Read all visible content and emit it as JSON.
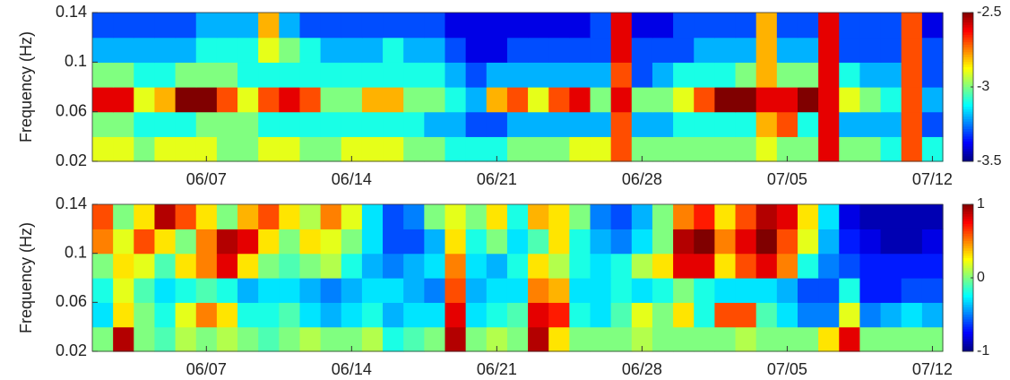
{
  "chart_data": [
    {
      "type": "heatmap",
      "ylabel": "Frequency (Hz)",
      "colormap": "jet",
      "categories": [
        null,
        null,
        null,
        null,
        null,
        "06/07",
        null,
        null,
        null,
        null,
        null,
        null,
        "06/14",
        null,
        null,
        null,
        null,
        null,
        null,
        "06/21",
        null,
        null,
        null,
        null,
        null,
        null,
        "06/28",
        null,
        null,
        null,
        null,
        null,
        null,
        "07/05",
        null,
        null,
        null,
        null,
        null,
        null,
        "07/12"
      ],
      "y": [
        0.03,
        0.05,
        0.07,
        0.09,
        0.11,
        0.13
      ],
      "ylim": [
        0.02,
        0.14
      ],
      "yticks": [
        0.02,
        0.06,
        0.1,
        0.14
      ],
      "clim": [
        -3.5,
        -2.5
      ],
      "cticks": [
        -2.5,
        -3,
        -3.5
      ],
      "z": [
        [
          -2.9,
          -2.9,
          -3.0,
          -2.9,
          -2.9,
          -2.9,
          -3.0,
          -3.0,
          -2.9,
          -2.9,
          -3.0,
          -3.0,
          -2.9,
          -2.9,
          -2.9,
          -3.0,
          -3.0,
          -3.1,
          -3.1,
          -3.1,
          -3.0,
          -3.0,
          -3.0,
          -2.9,
          -2.9,
          -2.7,
          -3.0,
          -3.0,
          -3.0,
          -3.0,
          -3.0,
          -3.0,
          -2.9,
          -3.0,
          -3.0,
          -2.6,
          -3.0,
          -3.0,
          -3.1,
          -2.7,
          -3.1
        ],
        [
          -3.0,
          -3.0,
          -3.1,
          -3.1,
          -3.1,
          -3.0,
          -3.0,
          -3.0,
          -3.1,
          -3.1,
          -3.1,
          -3.1,
          -3.1,
          -3.1,
          -3.1,
          -3.1,
          -3.2,
          -3.2,
          -3.3,
          -3.3,
          -3.2,
          -3.2,
          -3.2,
          -3.2,
          -3.2,
          -2.7,
          -3.2,
          -3.2,
          -3.1,
          -3.1,
          -3.1,
          -3.1,
          -2.8,
          -2.7,
          -3.1,
          -2.6,
          -3.2,
          -3.2,
          -3.2,
          -2.7,
          -3.3
        ],
        [
          -2.6,
          -2.6,
          -2.9,
          -2.8,
          -2.5,
          -2.5,
          -2.7,
          -2.9,
          -2.7,
          -2.6,
          -2.7,
          -3.0,
          -3.0,
          -2.8,
          -2.8,
          -3.0,
          -3.0,
          -3.1,
          -3.2,
          -2.8,
          -2.7,
          -2.9,
          -2.7,
          -2.6,
          -3.0,
          -2.6,
          -3.0,
          -3.0,
          -2.9,
          -2.7,
          -2.5,
          -2.5,
          -2.6,
          -2.6,
          -2.5,
          -2.6,
          -2.9,
          -3.0,
          -3.1,
          -2.7,
          -3.2
        ],
        [
          -3.0,
          -3.0,
          -3.1,
          -3.1,
          -3.0,
          -3.0,
          -3.0,
          -3.1,
          -3.1,
          -3.1,
          -3.1,
          -3.1,
          -3.1,
          -3.1,
          -3.1,
          -3.1,
          -3.1,
          -3.2,
          -3.3,
          -3.2,
          -3.2,
          -3.2,
          -3.2,
          -3.2,
          -3.2,
          -2.7,
          -3.3,
          -3.2,
          -3.1,
          -3.1,
          -3.1,
          -3.0,
          -2.8,
          -3.0,
          -3.0,
          -2.6,
          -3.1,
          -3.2,
          -3.2,
          -2.7,
          -3.3
        ],
        [
          -3.2,
          -3.2,
          -3.2,
          -3.2,
          -3.2,
          -3.1,
          -3.1,
          -3.1,
          -2.9,
          -3.0,
          -3.1,
          -3.2,
          -3.2,
          -3.2,
          -3.1,
          -3.2,
          -3.2,
          -3.3,
          -3.4,
          -3.4,
          -3.3,
          -3.3,
          -3.3,
          -3.3,
          -3.3,
          -2.6,
          -3.3,
          -3.3,
          -3.3,
          -3.2,
          -3.2,
          -3.2,
          -2.8,
          -3.2,
          -3.2,
          -2.6,
          -3.3,
          -3.3,
          -3.3,
          -2.7,
          -3.3
        ],
        [
          -3.3,
          -3.3,
          -3.3,
          -3.3,
          -3.3,
          -3.2,
          -3.2,
          -3.2,
          -2.8,
          -3.2,
          -3.3,
          -3.3,
          -3.3,
          -3.3,
          -3.3,
          -3.3,
          -3.3,
          -3.4,
          -3.4,
          -3.4,
          -3.4,
          -3.4,
          -3.4,
          -3.4,
          -3.3,
          -2.6,
          -3.4,
          -3.4,
          -3.3,
          -3.3,
          -3.3,
          -3.3,
          -2.8,
          -3.3,
          -3.3,
          -2.6,
          -3.3,
          -3.3,
          -3.3,
          -2.7,
          -3.4
        ]
      ]
    },
    {
      "type": "heatmap",
      "ylabel": "Frequency (Hz)",
      "colormap": "jet",
      "categories": [
        null,
        null,
        null,
        null,
        null,
        "06/07",
        null,
        null,
        null,
        null,
        null,
        null,
        "06/14",
        null,
        null,
        null,
        null,
        null,
        null,
        "06/21",
        null,
        null,
        null,
        null,
        null,
        null,
        "06/28",
        null,
        null,
        null,
        null,
        null,
        null,
        "07/05",
        null,
        null,
        null,
        null,
        null,
        null,
        "07/12"
      ],
      "y": [
        0.03,
        0.05,
        0.07,
        0.09,
        0.11,
        0.13
      ],
      "ylim": [
        0.02,
        0.14
      ],
      "yticks": [
        0.02,
        0.06,
        0.1,
        0.14
      ],
      "clim": [
        -1,
        1
      ],
      "cticks": [
        1,
        0,
        -1
      ],
      "z": [
        [
          0.0,
          0.9,
          0.0,
          -0.1,
          0.1,
          0.0,
          0.1,
          0.0,
          -0.1,
          0.0,
          0.1,
          0.0,
          0.0,
          0.1,
          -0.2,
          -0.1,
          0.0,
          0.9,
          0.0,
          0.1,
          0.0,
          0.9,
          0.3,
          0.0,
          0.0,
          0.0,
          0.1,
          0.0,
          0.0,
          0.0,
          0.0,
          0.1,
          0.0,
          0.0,
          0.0,
          0.3,
          0.8,
          0.0,
          0.0,
          0.0,
          0.0
        ],
        [
          -0.3,
          0.3,
          0.0,
          -0.2,
          0.2,
          0.5,
          0.3,
          -0.2,
          -0.2,
          -0.1,
          -0.3,
          -0.4,
          -0.3,
          -0.2,
          -0.4,
          -0.3,
          -0.3,
          0.8,
          -0.3,
          -0.2,
          -0.1,
          0.8,
          0.7,
          -0.2,
          -0.3,
          -0.1,
          0.2,
          0.0,
          0.3,
          -0.2,
          0.6,
          0.6,
          -0.1,
          -0.3,
          -0.5,
          -0.5,
          0.2,
          -0.5,
          -0.4,
          -0.3,
          -0.4
        ],
        [
          -0.2,
          0.2,
          -0.1,
          -0.3,
          -0.2,
          -0.1,
          -0.2,
          -0.4,
          -0.3,
          -0.3,
          -0.4,
          -0.5,
          -0.4,
          -0.3,
          -0.3,
          -0.4,
          -0.5,
          0.6,
          -0.4,
          -0.3,
          -0.3,
          0.5,
          0.4,
          -0.3,
          -0.3,
          -0.2,
          -0.3,
          -0.2,
          0.0,
          -0.2,
          -0.3,
          -0.3,
          -0.3,
          -0.4,
          -0.6,
          -0.6,
          -0.2,
          -0.7,
          -0.7,
          -0.6,
          -0.6
        ],
        [
          0.0,
          0.3,
          0.2,
          -0.1,
          0.3,
          0.5,
          0.8,
          0.3,
          0.0,
          -0.1,
          0.0,
          0.1,
          -0.2,
          -0.4,
          -0.5,
          -0.4,
          -0.3,
          0.5,
          -0.3,
          -0.4,
          -0.2,
          0.3,
          0.1,
          -0.2,
          -0.3,
          -0.2,
          0.1,
          0.3,
          0.8,
          0.8,
          0.3,
          0.6,
          0.8,
          0.5,
          -0.2,
          -0.5,
          -0.6,
          -0.7,
          -0.7,
          -0.7,
          -0.7
        ],
        [
          0.5,
          0.2,
          0.6,
          0.3,
          0.0,
          0.5,
          0.9,
          0.8,
          0.3,
          0.0,
          0.3,
          0.2,
          0.0,
          -0.3,
          -0.6,
          -0.6,
          -0.4,
          0.3,
          -0.2,
          0.0,
          -0.3,
          -0.1,
          0.3,
          -0.2,
          -0.4,
          -0.5,
          -0.3,
          0.0,
          0.9,
          1.0,
          0.5,
          0.8,
          1.0,
          0.6,
          0.2,
          -0.4,
          -0.7,
          -0.8,
          -0.9,
          -0.9,
          -0.8
        ],
        [
          0.6,
          0.0,
          0.3,
          0.9,
          0.6,
          0.3,
          0.0,
          0.4,
          0.6,
          0.3,
          0.1,
          0.5,
          0.2,
          -0.3,
          -0.6,
          -0.5,
          0.0,
          0.2,
          0.0,
          0.3,
          -0.2,
          0.4,
          0.3,
          0.0,
          -0.5,
          -0.6,
          -0.4,
          0.0,
          0.5,
          0.7,
          0.3,
          0.6,
          0.9,
          0.8,
          0.3,
          -0.3,
          -0.8,
          -0.9,
          -0.9,
          -0.9,
          -0.9
        ]
      ]
    }
  ]
}
